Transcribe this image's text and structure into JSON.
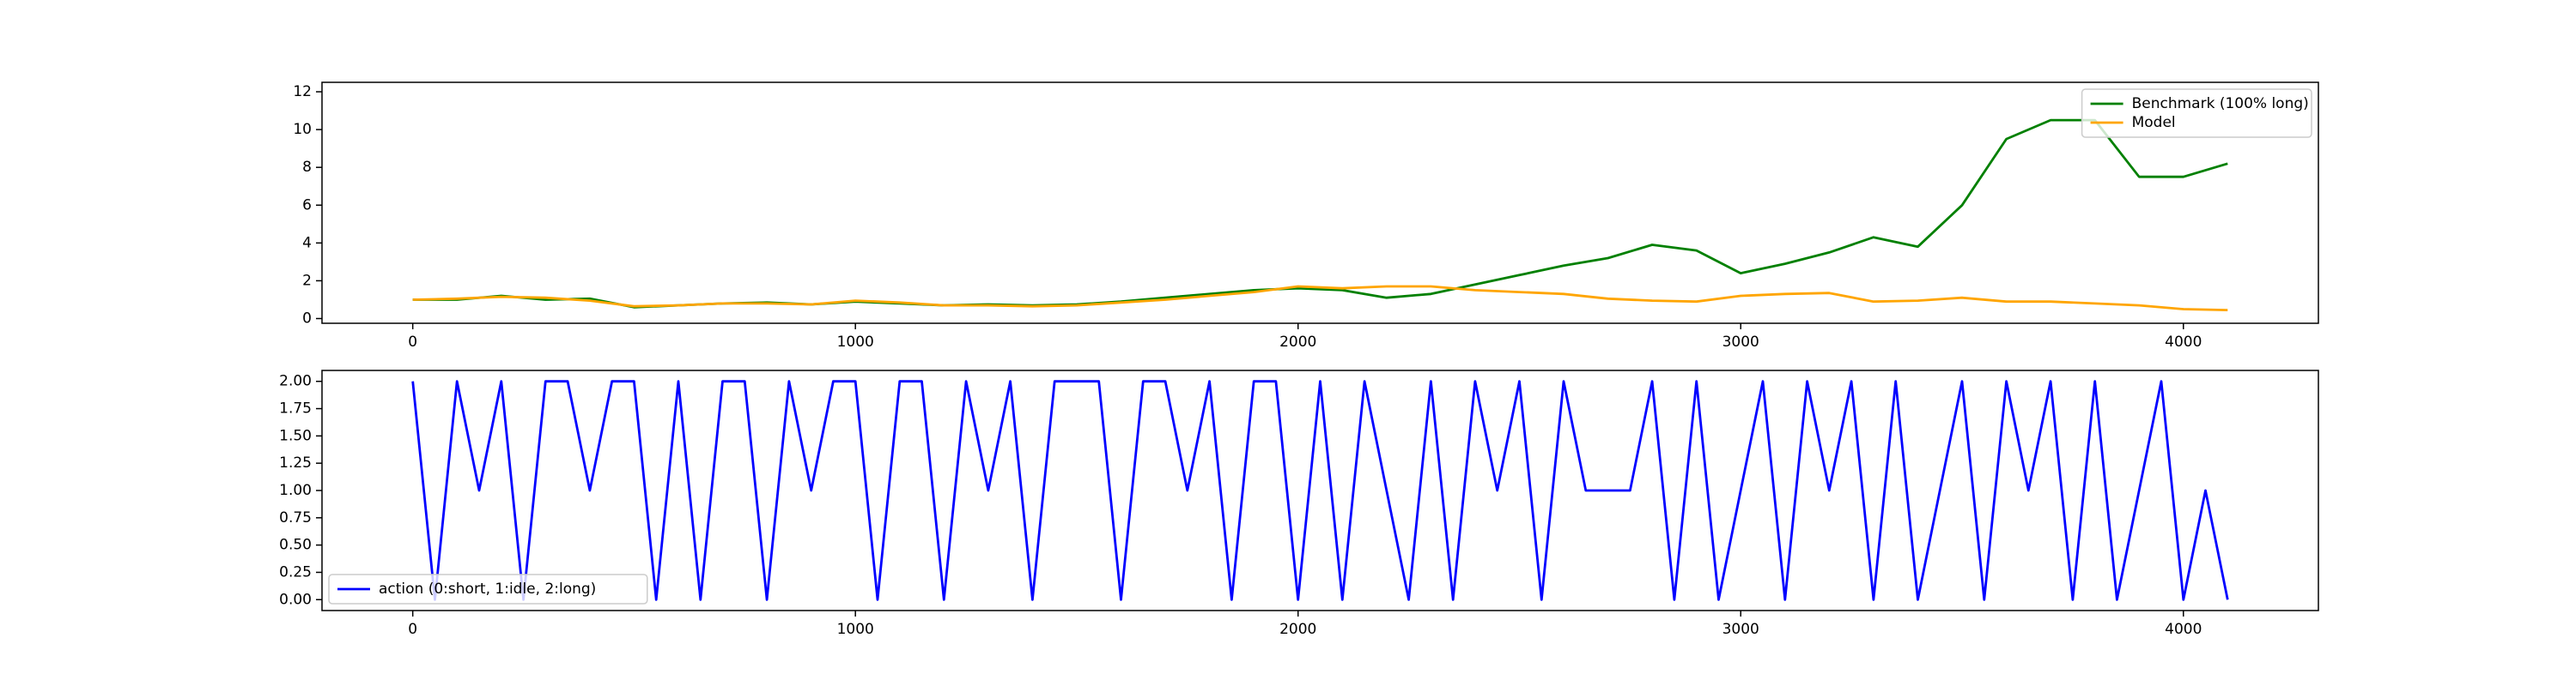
{
  "chart_data": [
    {
      "type": "line",
      "xlim": [
        -205,
        4305
      ],
      "ylim": [
        -0.25,
        12.5
      ],
      "xticks": [
        0,
        1000,
        2000,
        3000,
        4000
      ],
      "yticks": [
        0,
        2,
        4,
        6,
        8,
        10,
        12
      ],
      "legend": "upper right",
      "x": [
        0,
        100,
        200,
        300,
        400,
        500,
        600,
        700,
        800,
        900,
        1000,
        1100,
        1200,
        1300,
        1400,
        1500,
        1600,
        1700,
        1800,
        1900,
        2000,
        2100,
        2200,
        2300,
        2400,
        2500,
        2600,
        2700,
        2800,
        2900,
        3000,
        3100,
        3200,
        3300,
        3400,
        3500,
        3600,
        3700,
        3800,
        3900,
        4000,
        4100
      ],
      "series": [
        {
          "name": "Benchmark (100% long)",
          "color": "#008000",
          "values": [
            1.0,
            1.0,
            1.2,
            1.0,
            1.05,
            0.6,
            0.7,
            0.8,
            0.85,
            0.75,
            0.9,
            0.8,
            0.7,
            0.75,
            0.7,
            0.75,
            0.9,
            1.1,
            1.3,
            1.5,
            1.6,
            1.5,
            1.1,
            1.3,
            1.8,
            2.3,
            2.8,
            3.2,
            3.9,
            3.6,
            2.4,
            2.9,
            3.5,
            4.3,
            3.8,
            6.0,
            9.5,
            10.5,
            10.5,
            7.5,
            7.5,
            8.2
          ]
        },
        {
          "name": "Model",
          "color": "#ffa500",
          "values": [
            1.0,
            1.05,
            1.15,
            1.1,
            0.95,
            0.65,
            0.7,
            0.8,
            0.8,
            0.75,
            0.95,
            0.85,
            0.7,
            0.7,
            0.65,
            0.7,
            0.85,
            1.0,
            1.2,
            1.4,
            1.7,
            1.6,
            1.7,
            1.7,
            1.5,
            1.4,
            1.3,
            1.05,
            0.95,
            0.9,
            1.2,
            1.3,
            1.35,
            0.9,
            0.95,
            1.1,
            0.9,
            0.9,
            0.8,
            0.7,
            0.5,
            0.45
          ]
        }
      ]
    },
    {
      "type": "line",
      "xlim": [
        -205,
        4305
      ],
      "ylim": [
        -0.1,
        2.1
      ],
      "xticks": [
        0,
        1000,
        2000,
        3000,
        4000
      ],
      "yticks": [
        {
          "value": 0,
          "label": "0.00"
        },
        {
          "value": 0.25,
          "label": "0.25"
        },
        {
          "value": 0.5,
          "label": "0.50"
        },
        {
          "value": 0.75,
          "label": "0.75"
        },
        {
          "value": 1,
          "label": "1.00"
        },
        {
          "value": 1.25,
          "label": "1.25"
        },
        {
          "value": 1.5,
          "label": "1.50"
        },
        {
          "value": 1.75,
          "label": "1.75"
        },
        {
          "value": 2,
          "label": "2.00"
        }
      ],
      "legend": "lower left",
      "x": [
        0,
        50,
        100,
        150,
        200,
        250,
        300,
        350,
        400,
        450,
        500,
        550,
        600,
        650,
        700,
        750,
        800,
        850,
        900,
        950,
        1000,
        1050,
        1100,
        1150,
        1200,
        1250,
        1300,
        1350,
        1400,
        1450,
        1500,
        1550,
        1600,
        1650,
        1700,
        1750,
        1800,
        1850,
        1900,
        1950,
        2000,
        2050,
        2100,
        2150,
        2200,
        2250,
        2300,
        2350,
        2400,
        2450,
        2500,
        2550,
        2600,
        2650,
        2700,
        2750,
        2800,
        2850,
        2900,
        2950,
        3000,
        3050,
        3100,
        3150,
        3200,
        3250,
        3300,
        3350,
        3400,
        3450,
        3500,
        3550,
        3600,
        3650,
        3700,
        3750,
        3800,
        3850,
        3900,
        3950,
        4000,
        4050,
        4100
      ],
      "series": [
        {
          "name": "action (0:short, 1:idle, 2:long)",
          "color": "#0000ff",
          "values": [
            2,
            0,
            2,
            1,
            2,
            0,
            2,
            2,
            1,
            2,
            2,
            0,
            2,
            0,
            2,
            2,
            0,
            2,
            1,
            2,
            2,
            0,
            2,
            2,
            0,
            2,
            1,
            2,
            0,
            2,
            2,
            2,
            0,
            2,
            2,
            1,
            2,
            0,
            2,
            2,
            0,
            2,
            0,
            2,
            1,
            0,
            2,
            0,
            2,
            1,
            2,
            0,
            2,
            1,
            1,
            1,
            2,
            0,
            2,
            0,
            1,
            2,
            0,
            2,
            1,
            2,
            0,
            2,
            0,
            1,
            2,
            0,
            2,
            1,
            2,
            0,
            2,
            0,
            1,
            2,
            0,
            1,
            0
          ]
        }
      ]
    }
  ]
}
